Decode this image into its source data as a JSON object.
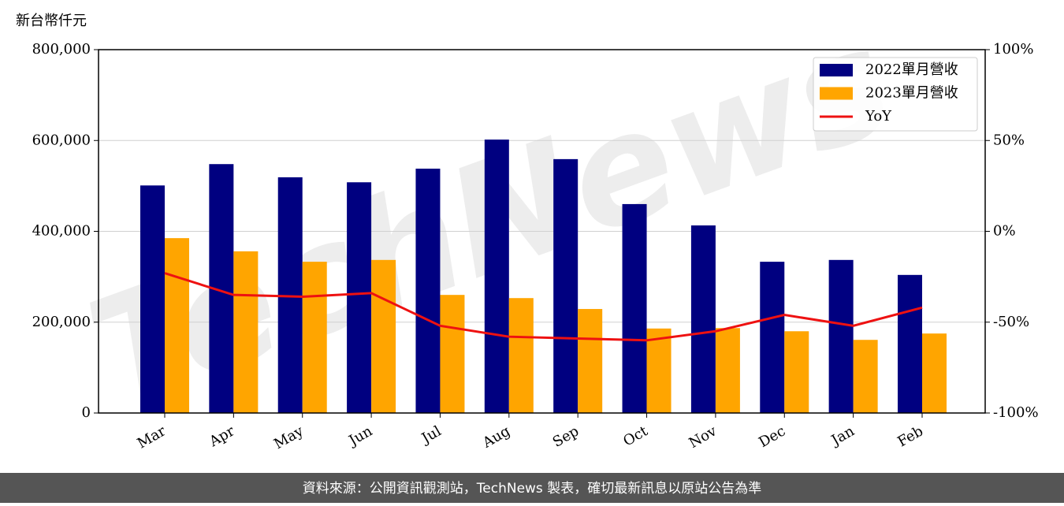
{
  "chart_data": {
    "type": "bar",
    "unit_label": "新台幣仟元",
    "watermark": "TechNews",
    "categories": [
      "Mar",
      "Apr",
      "May",
      "Jun",
      "Jul",
      "Aug",
      "Sep",
      "Oct",
      "Nov",
      "Dec",
      "Jan",
      "Feb"
    ],
    "series": [
      {
        "name": "2022單月營收",
        "color": "#000080",
        "values": [
          501000,
          548000,
          519000,
          508000,
          538000,
          602000,
          559000,
          460000,
          413000,
          333000,
          337000,
          304000
        ]
      },
      {
        "name": "2023單月營收",
        "color": "#ffa500",
        "values": [
          385000,
          356000,
          333000,
          337000,
          260000,
          253000,
          229000,
          186000,
          187000,
          180000,
          161000,
          175000
        ]
      },
      {
        "name": "YoY",
        "color": "#ee1111",
        "type": "line",
        "axis": "y2",
        "values": [
          -23,
          -35,
          -36,
          -34,
          -52,
          -58,
          -59,
          -60,
          -55,
          -46,
          -52,
          -42
        ]
      }
    ],
    "ylim": [
      0,
      800000
    ],
    "yticks": [
      0,
      {
        "value": 200000,
        "label": "200,000"
      },
      {
        "value": 400000,
        "label": "400,000"
      },
      {
        "value": 600000,
        "label": "600,000"
      },
      {
        "value": 800000,
        "label": "800,000"
      }
    ],
    "y2lim": [
      -100,
      100
    ],
    "y2ticks": [
      {
        "value": -100,
        "label": "-100%"
      },
      {
        "value": -50,
        "label": "-50%"
      },
      {
        "value": 0,
        "label": "0%"
      },
      {
        "value": 50,
        "label": "50%"
      },
      {
        "value": 100,
        "label": "100%"
      }
    ],
    "grid": true,
    "legend": "upper right",
    "footer": "資料來源：公開資訊觀測站，TechNews 製表，確切最新訊息以原站公告為準"
  }
}
